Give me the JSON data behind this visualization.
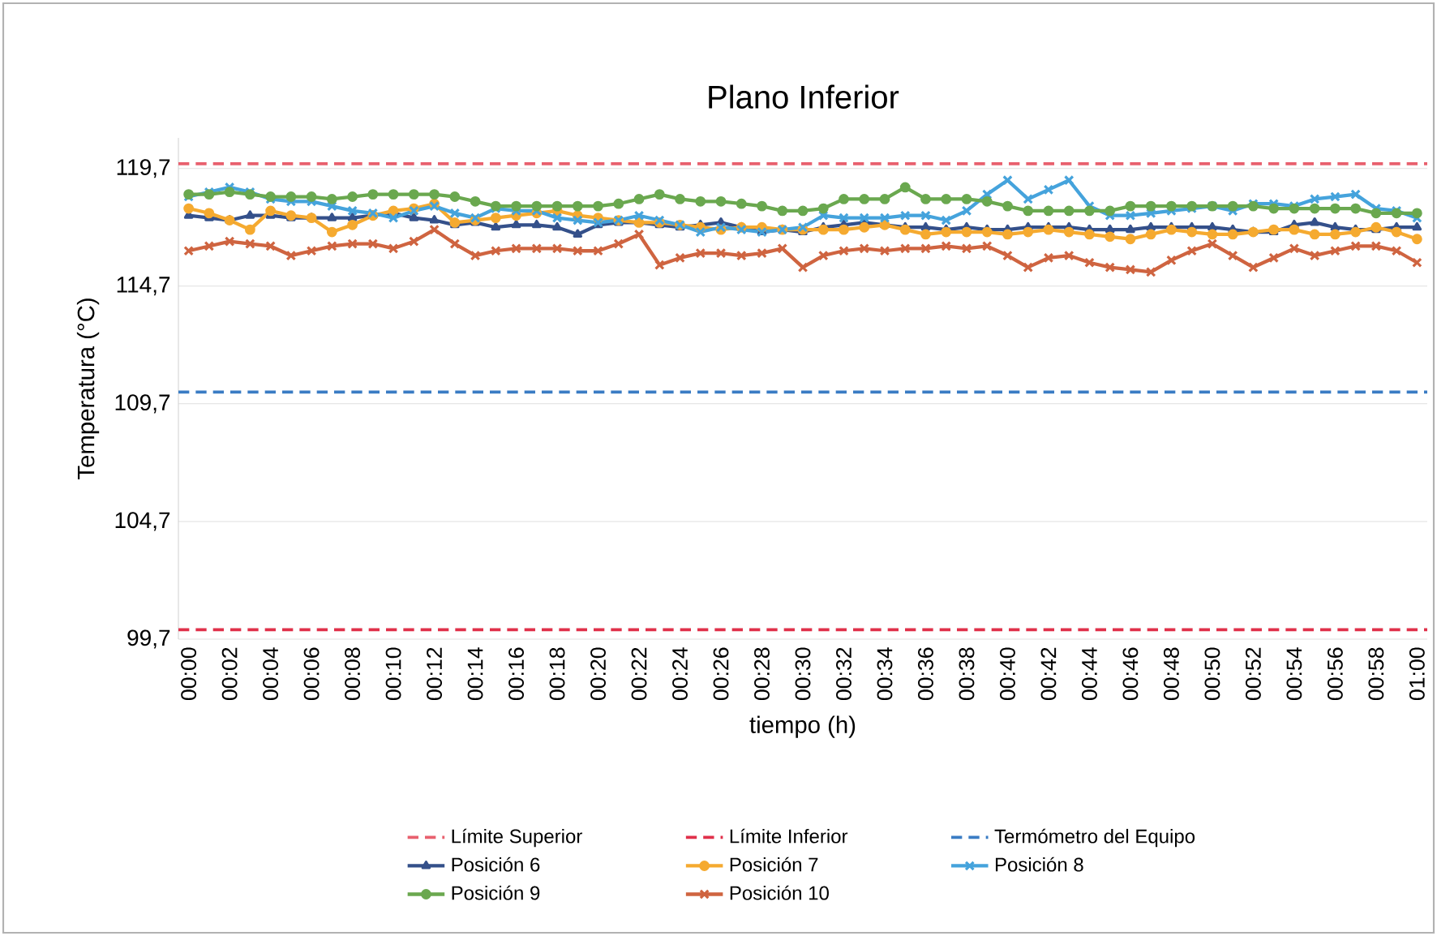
{
  "chart_data": {
    "type": "line",
    "title": "Plano Inferior",
    "xlabel": "tiempo (h)",
    "ylabel": "Temperatura (°C)",
    "categories": [
      "00:00",
      null,
      "00:02",
      null,
      "00:04",
      null,
      "00:06",
      null,
      "00:08",
      null,
      "00:10",
      null,
      "00:12",
      null,
      "00:14",
      null,
      "00:16",
      null,
      "00:18",
      null,
      "00:20",
      null,
      "00:22",
      null,
      "00:24",
      null,
      "00:26",
      null,
      "00:28",
      null,
      "00:30",
      null,
      "00:32",
      null,
      "00:34",
      null,
      "00:36",
      null,
      "00:38",
      null,
      "00:40",
      null,
      "00:42",
      null,
      "00:44",
      null,
      "00:46",
      null,
      "00:48",
      null,
      "00:50",
      null,
      "00:52",
      null,
      "00:54",
      null,
      "00:56",
      null,
      "00:58",
      null,
      "01:00"
    ],
    "ylim": [
      99.7,
      121
    ],
    "yticks": [
      {
        "value": 99.7,
        "label": "99,7"
      },
      {
        "value": 104.7,
        "label": "104,7"
      },
      {
        "value": 109.7,
        "label": "109,7"
      },
      {
        "value": 114.7,
        "label": "114,7"
      },
      {
        "value": 119.7,
        "label": "119,7"
      }
    ],
    "grid": "y",
    "legend": "bottom",
    "ref_lines": [
      {
        "axis": "y",
        "value": 119.9,
        "label": "Límite Superior",
        "color": "#e8606e",
        "line_style": "dashed"
      },
      {
        "axis": "y",
        "value": 100.1,
        "label": "Límite Inferior",
        "color": "#e0304a",
        "line_style": "dashed"
      },
      {
        "axis": "y",
        "value": 110.2,
        "label": "Termómetro del Equipo",
        "color": "#3a7cc4",
        "line_style": "dashed"
      }
    ],
    "series": [
      {
        "name": "Posición 6",
        "color": "#34508a",
        "marker": "triangle",
        "values": [
          117.7,
          117.6,
          117.5,
          117.7,
          117.7,
          117.6,
          117.6,
          117.6,
          117.6,
          117.7,
          117.8,
          117.6,
          117.5,
          117.3,
          117.4,
          117.2,
          117.3,
          117.3,
          117.2,
          116.9,
          117.3,
          117.4,
          117.4,
          117.3,
          117.2,
          117.3,
          117.4,
          117.2,
          117.0,
          117.1,
          117.0,
          117.2,
          117.3,
          117.4,
          117.3,
          117.2,
          117.2,
          117.1,
          117.2,
          117.1,
          117.1,
          117.2,
          117.2,
          117.2,
          117.1,
          117.1,
          117.1,
          117.2,
          117.2,
          117.2,
          117.2,
          117.1,
          117.0,
          117.0,
          117.3,
          117.4,
          117.2,
          117.1,
          117.1,
          117.2,
          117.2
        ]
      },
      {
        "name": "Posición 7",
        "color": "#f5aa30",
        "marker": "circle",
        "values": [
          118.0,
          117.8,
          117.5,
          117.1,
          117.9,
          117.7,
          117.6,
          117.0,
          117.3,
          117.7,
          117.9,
          118.0,
          118.2,
          117.4,
          117.5,
          117.6,
          117.7,
          117.8,
          117.9,
          117.7,
          117.6,
          117.5,
          117.4,
          117.4,
          117.3,
          117.2,
          117.1,
          117.2,
          117.2,
          117.1,
          117.1,
          117.1,
          117.1,
          117.2,
          117.3,
          117.1,
          116.9,
          117.0,
          117.0,
          117.0,
          116.9,
          117.0,
          117.1,
          117.0,
          116.9,
          116.8,
          116.7,
          116.9,
          117.1,
          117.0,
          116.9,
          116.9,
          117.0,
          117.1,
          117.1,
          116.9,
          116.9,
          117.0,
          117.2,
          117.0,
          116.7
        ]
      },
      {
        "name": "Posición 8",
        "color": "#45a3dc",
        "marker": "cross",
        "values": [
          118.5,
          118.7,
          118.9,
          118.7,
          118.4,
          118.3,
          118.3,
          118.1,
          117.9,
          117.8,
          117.6,
          117.9,
          118.1,
          117.8,
          117.6,
          118.0,
          117.9,
          117.9,
          117.6,
          117.5,
          117.4,
          117.5,
          117.7,
          117.5,
          117.3,
          117.0,
          117.2,
          117.1,
          117.0,
          117.1,
          117.2,
          117.7,
          117.6,
          117.6,
          117.6,
          117.7,
          117.7,
          117.5,
          117.9,
          118.6,
          119.2,
          118.4,
          118.8,
          119.2,
          118.1,
          117.7,
          117.7,
          117.8,
          117.9,
          118.0,
          118.1,
          117.9,
          118.2,
          118.2,
          118.1,
          118.4,
          118.5,
          118.6,
          118.0,
          117.9,
          117.6
        ]
      },
      {
        "name": "Posición 9",
        "color": "#6aa84f",
        "marker": "circle",
        "values": [
          118.6,
          118.6,
          118.7,
          118.6,
          118.5,
          118.5,
          118.5,
          118.4,
          118.5,
          118.6,
          118.6,
          118.6,
          118.6,
          118.5,
          118.3,
          118.1,
          118.1,
          118.1,
          118.1,
          118.1,
          118.1,
          118.2,
          118.4,
          118.6,
          118.4,
          118.3,
          118.3,
          118.2,
          118.1,
          117.9,
          117.9,
          118.0,
          118.4,
          118.4,
          118.4,
          118.9,
          118.4,
          118.4,
          118.4,
          118.3,
          118.1,
          117.9,
          117.9,
          117.9,
          117.9,
          117.9,
          118.1,
          118.1,
          118.1,
          118.1,
          118.1,
          118.1,
          118.1,
          118.0,
          118.0,
          118.0,
          118.0,
          118.0,
          117.8,
          117.8,
          117.8
        ]
      },
      {
        "name": "Posición 10",
        "color": "#cf6440",
        "marker": "cross",
        "values": [
          116.2,
          116.4,
          116.6,
          116.5,
          116.4,
          116.0,
          116.2,
          116.4,
          116.5,
          116.5,
          116.3,
          116.6,
          117.1,
          116.5,
          116.0,
          116.2,
          116.3,
          116.3,
          116.3,
          116.2,
          116.2,
          116.5,
          116.9,
          115.6,
          115.9,
          116.1,
          116.1,
          116.0,
          116.1,
          116.3,
          115.5,
          116.0,
          116.2,
          116.3,
          116.2,
          116.3,
          116.3,
          116.4,
          116.3,
          116.4,
          116.0,
          115.5,
          115.9,
          116.0,
          115.7,
          115.5,
          115.4,
          115.3,
          115.8,
          116.2,
          116.5,
          116.0,
          115.5,
          115.9,
          116.3,
          116.0,
          116.2,
          116.4,
          116.4,
          116.2,
          115.7
        ]
      }
    ]
  }
}
